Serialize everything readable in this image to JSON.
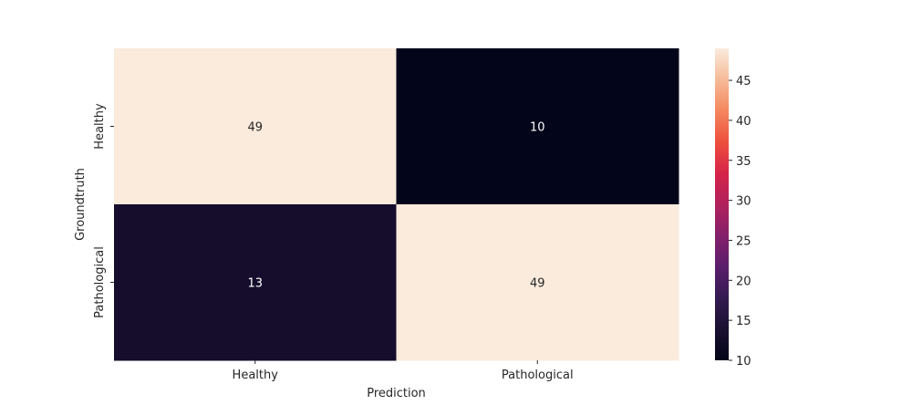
{
  "chart_data": {
    "type": "heatmap",
    "title": "",
    "xlabel": "Prediction",
    "ylabel": "Groundtruth",
    "x_categories": [
      "Healthy",
      "Pathological"
    ],
    "y_categories": [
      "Healthy",
      "Pathological"
    ],
    "values": [
      [
        49,
        10
      ],
      [
        13,
        49
      ]
    ],
    "colorbar": {
      "min": 10,
      "max": 49,
      "ticks": [
        10,
        15,
        20,
        25,
        30,
        35,
        40,
        45
      ],
      "colormap": "rocket"
    },
    "grid": false
  }
}
